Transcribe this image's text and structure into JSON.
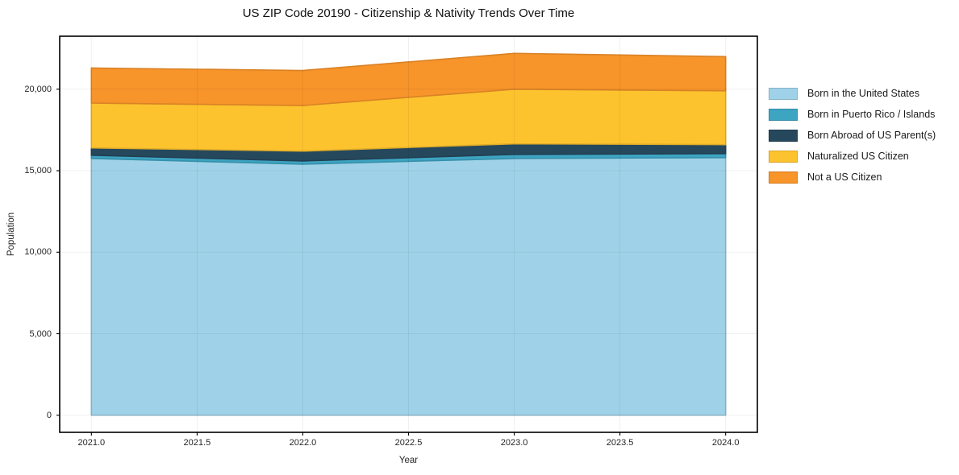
{
  "page": {
    "background": "#ffffff",
    "text_color": "#1a1a1a"
  },
  "chart_data": {
    "type": "area",
    "stacked": true,
    "title": "US ZIP Code 20190 - Citizenship & Nativity Trends Over Time",
    "xlabel": "Year",
    "ylabel": "Population",
    "x": [
      2021,
      2022,
      2023,
      2024
    ],
    "series": [
      {
        "name": "Born in the United States",
        "color": "#9fd2e8",
        "values": [
          15750,
          15400,
          15750,
          15800
        ]
      },
      {
        "name": "Born in Puerto Rico / Islands",
        "color": "#3da4c2",
        "values": [
          200,
          200,
          250,
          250
        ]
      },
      {
        "name": "Born Abroad of US Parent(s)",
        "color": "#26485c",
        "values": [
          450,
          600,
          650,
          550
        ]
      },
      {
        "name": "Naturalized US Citizen",
        "color": "#fdc32e",
        "values": [
          2750,
          2800,
          3350,
          3300
        ]
      },
      {
        "name": "Not a US Citizen",
        "color": "#f7942a",
        "values": [
          2150,
          2150,
          2200,
          2100
        ]
      }
    ],
    "totals": [
      21300,
      21150,
      22200,
      22000
    ],
    "xlim": [
      2020.85,
      2024.15
    ],
    "ylim": [
      -1050,
      23250
    ],
    "xticks": {
      "values": [
        2021.0,
        2021.5,
        2022.0,
        2022.5,
        2023.0,
        2023.5,
        2024.0
      ],
      "labels": [
        "2021.0",
        "2021.5",
        "2022.0",
        "2022.5",
        "2023.0",
        "2023.5",
        "2024.0"
      ]
    },
    "yticks": {
      "values": [
        0,
        5000,
        10000,
        15000,
        20000
      ],
      "labels": [
        "0",
        "5,000",
        "10,000",
        "15,000",
        "20,000"
      ]
    },
    "grid": true,
    "legend_position": "right-outside",
    "spine_color": "#000000"
  }
}
